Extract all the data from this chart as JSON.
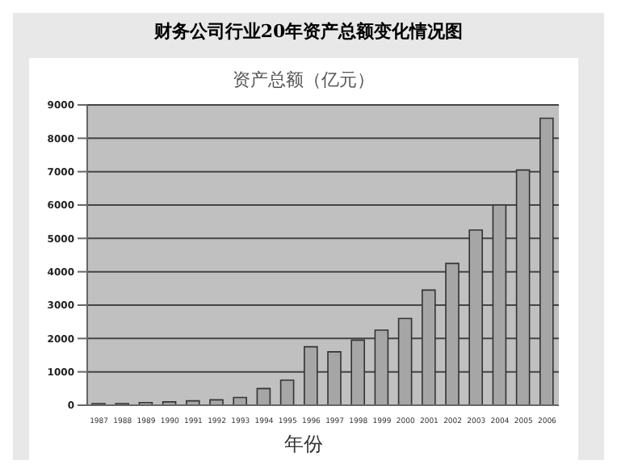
{
  "chart_data": {
    "type": "bar",
    "title": "财务公司行业20年资产总额变化情况图",
    "subtitle": "资产总额（亿元）",
    "xlabel": "年份",
    "categories": [
      "1987",
      "1988",
      "1989",
      "1990",
      "1991",
      "1992",
      "1993",
      "1994",
      "1995",
      "1996",
      "1997",
      "1998",
      "1999",
      "2000",
      "2001",
      "2002",
      "2003",
      "2004",
      "2005",
      "2006"
    ],
    "values": [
      50,
      50,
      80,
      100,
      130,
      160,
      230,
      500,
      750,
      1750,
      1600,
      1950,
      2250,
      2600,
      3450,
      4250,
      5250,
      6000,
      7050,
      8600
    ],
    "color": "#a6a6a6",
    "ylim": [
      0,
      9000
    ],
    "yticks": [
      0,
      1000,
      2000,
      3000,
      4000,
      5000,
      6000,
      7000,
      8000,
      9000
    ],
    "grid": "y"
  }
}
